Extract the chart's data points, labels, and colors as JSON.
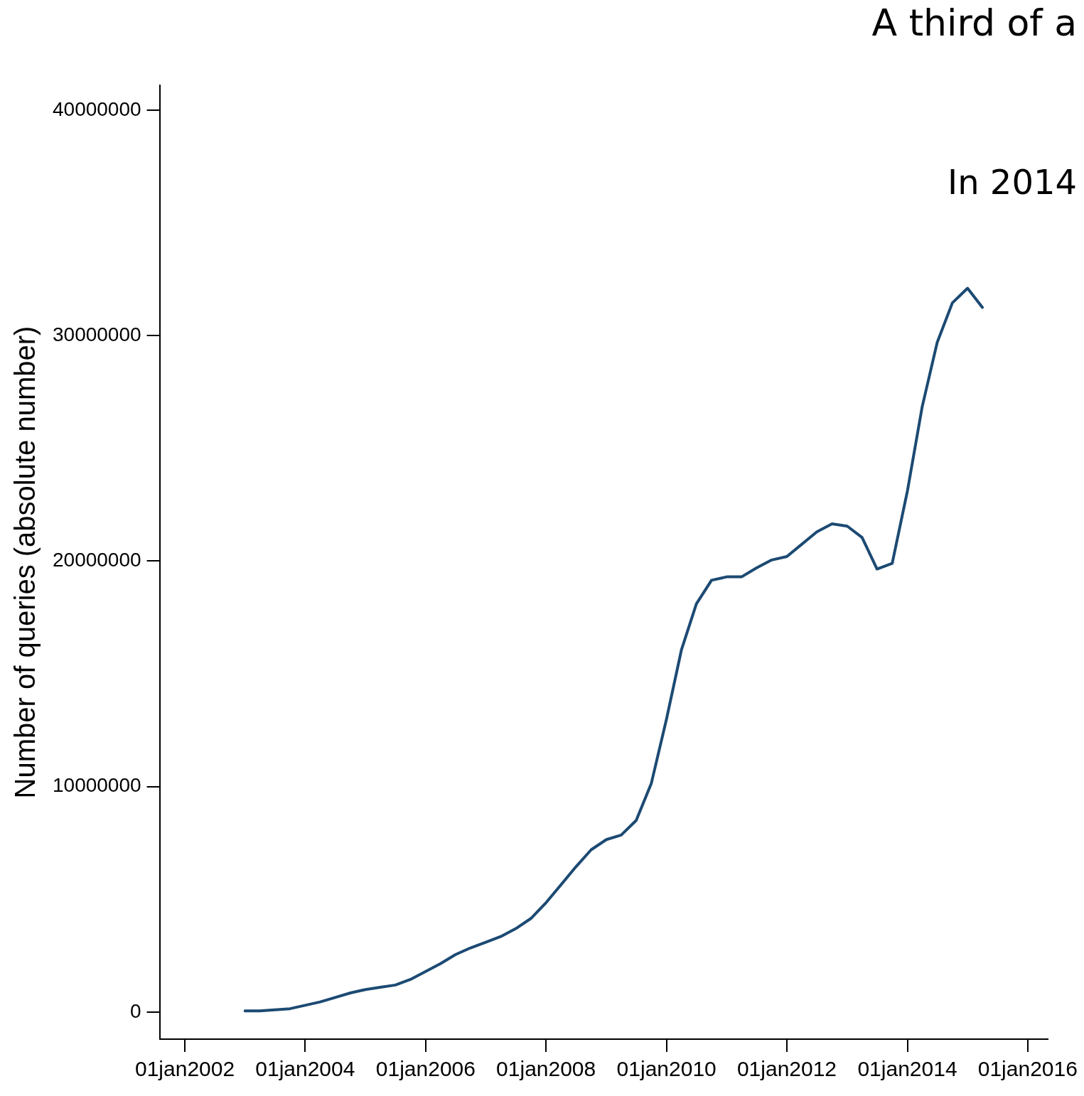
{
  "chart_data": {
    "type": "line",
    "title": "A third of a",
    "annotations": [
      "In 2014"
    ],
    "ylabel": "Number of queries (absolute number)",
    "x": [
      "2003-01-01",
      "2003-04-01",
      "2003-07-01",
      "2003-10-01",
      "2004-01-01",
      "2004-04-01",
      "2004-07-01",
      "2004-10-01",
      "2005-01-01",
      "2005-04-01",
      "2005-07-01",
      "2005-10-01",
      "2006-01-01",
      "2006-04-01",
      "2006-07-01",
      "2006-10-01",
      "2007-01-01",
      "2007-04-01",
      "2007-07-01",
      "2007-10-01",
      "2008-01-01",
      "2008-04-01",
      "2008-07-01",
      "2008-10-01",
      "2009-01-01",
      "2009-04-01",
      "2009-07-01",
      "2009-10-01",
      "2010-01-01",
      "2010-04-01",
      "2010-07-01",
      "2010-10-01",
      "2011-01-01",
      "2011-04-01",
      "2011-07-01",
      "2011-10-01",
      "2012-01-01",
      "2012-04-01",
      "2012-07-01",
      "2012-10-01",
      "2013-01-01",
      "2013-04-01",
      "2013-07-01",
      "2013-10-01",
      "2014-01-01",
      "2014-04-01",
      "2014-07-01",
      "2014-10-01",
      "2015-01-01",
      "2015-04-01"
    ],
    "series": [
      {
        "color": "#1c4a73",
        "values": [
          50000,
          50000,
          100000,
          150000,
          300000,
          450000,
          650000,
          850000,
          1000000,
          1100000,
          1200000,
          1450000,
          1800000,
          2150000,
          2550000,
          2850000,
          3100000,
          3350000,
          3700000,
          4150000,
          4850000,
          5650000,
          6450000,
          7200000,
          7650000,
          7850000,
          8500000,
          10150000,
          13000000,
          16050000,
          18100000,
          19150000,
          19300000,
          19300000,
          19700000,
          20050000,
          20200000,
          20750000,
          21300000,
          21650000,
          21550000,
          21050000,
          19650000,
          19900000,
          23100000,
          26850000,
          29700000,
          31450000,
          32100000,
          31250000
        ]
      }
    ],
    "xlim": [
      "2001-08-01",
      "2016-05-01"
    ],
    "xticks": [
      {
        "value": "2002-01-01",
        "label": "01jan2002"
      },
      {
        "value": "2004-01-01",
        "label": "01jan2004"
      },
      {
        "value": "2006-01-01",
        "label": "01jan2006"
      },
      {
        "value": "2008-01-01",
        "label": "01jan2008"
      },
      {
        "value": "2010-01-01",
        "label": "01jan2010"
      },
      {
        "value": "2012-01-01",
        "label": "01jan2012"
      },
      {
        "value": "2014-01-01",
        "label": "01jan2014"
      },
      {
        "value": "2016-01-01",
        "label": "01jan2016"
      }
    ],
    "ylim": [
      -1200000,
      41100000
    ],
    "yticks": [
      0,
      10000000,
      20000000,
      30000000,
      40000000
    ],
    "grid": false,
    "legend": false,
    "marker": "none",
    "line_style": "solid"
  }
}
